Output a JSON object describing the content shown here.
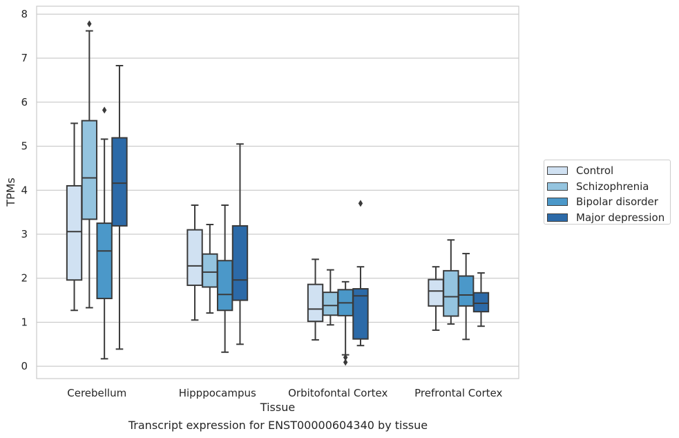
{
  "chart_data": {
    "type": "boxplot",
    "caption": "Transcript expression for ENST00000604340 by tissue",
    "xlabel": "Tissue",
    "ylabel": "TPMs",
    "ylim": [
      -0.28,
      8.18
    ],
    "yticks": [
      0,
      1,
      2,
      3,
      4,
      5,
      6,
      7,
      8
    ],
    "grid": true,
    "legend_position": "right",
    "categories": [
      "Cerebellum",
      "Hipppocampus",
      "Orbitofontal Cortex",
      "Prefrontal Cortex"
    ],
    "series": [
      {
        "name": "Control",
        "color": "#d0e1f2",
        "boxes": [
          {
            "whislo": 1.27,
            "q1": 1.96,
            "med": 3.06,
            "q3": 4.1,
            "whishi": 5.52,
            "fliers": []
          },
          {
            "whislo": 1.05,
            "q1": 1.84,
            "med": 2.28,
            "q3": 3.1,
            "whishi": 3.66,
            "fliers": []
          },
          {
            "whislo": 0.6,
            "q1": 1.02,
            "med": 1.3,
            "q3": 1.86,
            "whishi": 2.43,
            "fliers": []
          },
          {
            "whislo": 0.82,
            "q1": 1.37,
            "med": 1.71,
            "q3": 1.97,
            "whishi": 2.26,
            "fliers": []
          }
        ]
      },
      {
        "name": "Schizophrenia",
        "color": "#94c4df",
        "boxes": [
          {
            "whislo": 1.33,
            "q1": 3.34,
            "med": 4.28,
            "q3": 5.58,
            "whishi": 7.62,
            "fliers": [
              7.78
            ]
          },
          {
            "whislo": 1.21,
            "q1": 1.8,
            "med": 2.14,
            "q3": 2.55,
            "whishi": 3.22,
            "fliers": []
          },
          {
            "whislo": 0.94,
            "q1": 1.16,
            "med": 1.38,
            "q3": 1.68,
            "whishi": 2.19,
            "fliers": []
          },
          {
            "whislo": 0.96,
            "q1": 1.14,
            "med": 1.58,
            "q3": 2.17,
            "whishi": 2.87,
            "fliers": []
          }
        ]
      },
      {
        "name": "Bipolar disorder",
        "color": "#4b98c9",
        "boxes": [
          {
            "whislo": 0.17,
            "q1": 1.54,
            "med": 2.62,
            "q3": 3.25,
            "whishi": 5.16,
            "fliers": [
              5.82
            ]
          },
          {
            "whislo": 0.32,
            "q1": 1.27,
            "med": 1.63,
            "q3": 2.4,
            "whishi": 3.66,
            "fliers": []
          },
          {
            "whislo": 0.26,
            "q1": 1.15,
            "med": 1.44,
            "q3": 1.74,
            "whishi": 1.92,
            "fliers": [
              0.2,
              0.09
            ]
          },
          {
            "whislo": 0.61,
            "q1": 1.37,
            "med": 1.62,
            "q3": 2.05,
            "whishi": 2.56,
            "fliers": []
          }
        ]
      },
      {
        "name": "Major depression",
        "color": "#2c6aa8",
        "boxes": [
          {
            "whislo": 0.39,
            "q1": 3.19,
            "med": 4.16,
            "q3": 5.19,
            "whishi": 6.83,
            "fliers": []
          },
          {
            "whislo": 0.5,
            "q1": 1.5,
            "med": 1.96,
            "q3": 3.19,
            "whishi": 5.05,
            "fliers": []
          },
          {
            "whislo": 0.47,
            "q1": 0.62,
            "med": 1.6,
            "q3": 1.76,
            "whishi": 2.26,
            "fliers": [
              3.7
            ]
          },
          {
            "whislo": 0.91,
            "q1": 1.24,
            "med": 1.43,
            "q3": 1.67,
            "whishi": 2.12,
            "fliers": []
          }
        ]
      }
    ]
  }
}
